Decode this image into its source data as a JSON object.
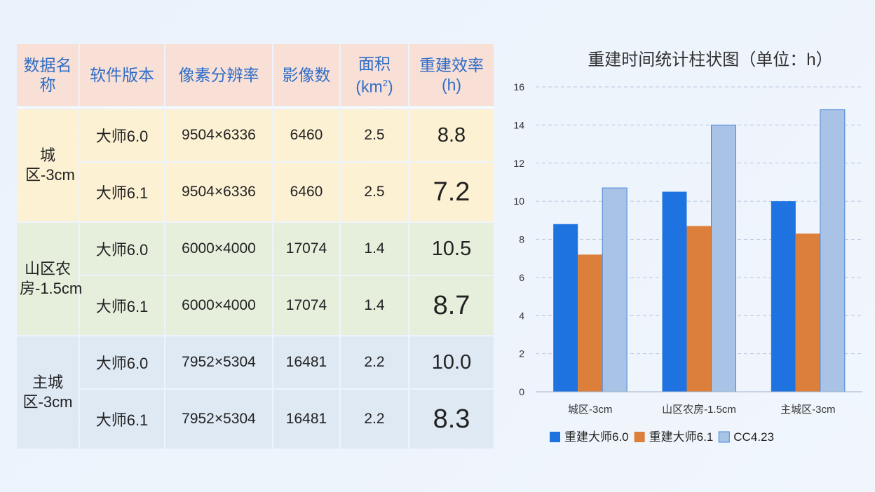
{
  "table": {
    "headers": {
      "name": "数据名称",
      "software": "软件版本",
      "resolution": "像素分辨率",
      "images": "影像数",
      "area_main": "面积",
      "area_unit_pre": "(km",
      "area_unit_sup": "2",
      "area_unit_post": ")",
      "efficiency": "重建效率",
      "efficiency_unit": "(h)"
    },
    "groups": [
      {
        "name": "城区-3cm",
        "rows": [
          {
            "software": "大师6.0",
            "resolution": "9504×6336",
            "images": "6460",
            "area": "2.5",
            "efficiency": "8.8"
          },
          {
            "software": "大师6.1",
            "resolution": "9504×6336",
            "images": "6460",
            "area": "2.5",
            "efficiency": "7.2"
          }
        ]
      },
      {
        "name": "山区农房-1.5cm",
        "rows": [
          {
            "software": "大师6.0",
            "resolution": "6000×4000",
            "images": "17074",
            "area": "1.4",
            "efficiency": "10.5"
          },
          {
            "software": "大师6.1",
            "resolution": "6000×4000",
            "images": "17074",
            "area": "1.4",
            "efficiency": "8.7"
          }
        ]
      },
      {
        "name": "主城区-3cm",
        "rows": [
          {
            "software": "大师6.0",
            "resolution": "7952×5304",
            "images": "16481",
            "area": "2.2",
            "efficiency": "10.0"
          },
          {
            "software": "大师6.1",
            "resolution": "7952×5304",
            "images": "16481",
            "area": "2.2",
            "efficiency": "8.3"
          }
        ]
      }
    ]
  },
  "chart_data": {
    "type": "bar",
    "title": "重建时间统计柱状图（单位：h）",
    "categories": [
      "城区-3cm",
      "山区农房-1.5cm",
      "主城区-3cm"
    ],
    "series": [
      {
        "name": "重建大师6.0",
        "values": [
          8.8,
          10.5,
          10.0
        ],
        "color": "#1f73e0"
      },
      {
        "name": "重建大师6.1",
        "values": [
          7.2,
          8.7,
          8.3
        ],
        "color": "#dc7f3a"
      },
      {
        "name": "CC4.23",
        "values": [
          10.7,
          14.0,
          14.8
        ],
        "color": "#a8c3e6"
      }
    ],
    "ylim": [
      0,
      16
    ],
    "yticks": [
      0,
      2,
      4,
      6,
      8,
      10,
      12,
      14,
      16
    ],
    "grid": true,
    "legend_position": "bottom"
  }
}
